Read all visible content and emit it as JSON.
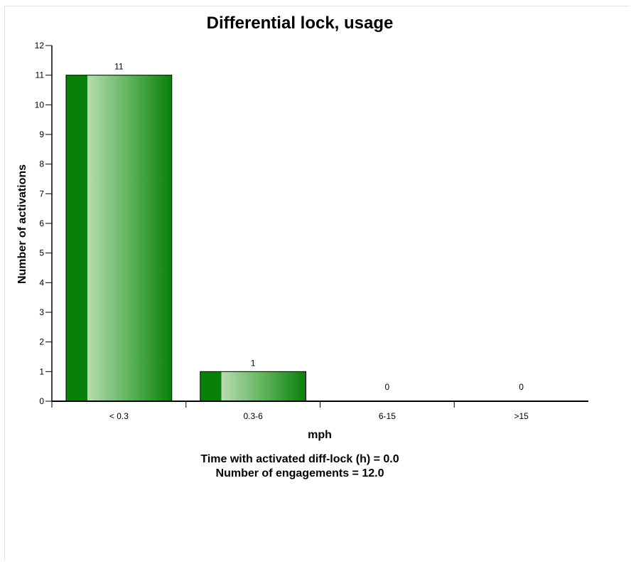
{
  "chart_data": {
    "type": "bar",
    "title": "Differential lock, usage",
    "xlabel": "mph",
    "ylabel": "Number of activations",
    "categories": [
      "< 0.3",
      "0.3-6",
      "6-15",
      ">15"
    ],
    "values": [
      11,
      1,
      0,
      0
    ],
    "ylim": [
      0,
      12
    ],
    "yticks": [
      0,
      1,
      2,
      3,
      4,
      5,
      6,
      7,
      8,
      9,
      10,
      11,
      12
    ],
    "grid": false,
    "legend": "none",
    "bar_color": "#0a7f0a",
    "bar_highlight": "#b8dcb0",
    "annotations": [
      "Time with activated diff-lock (h) = 0.0",
      "Number of engagements = 12.0"
    ]
  }
}
